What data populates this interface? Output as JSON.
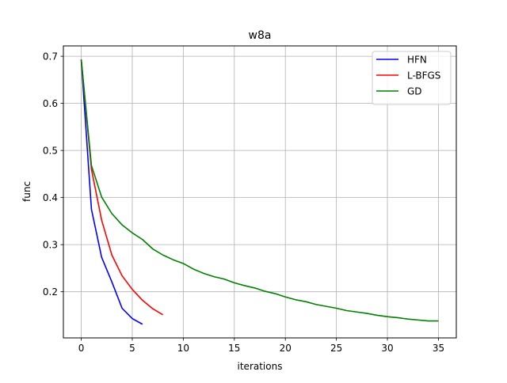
{
  "chart_data": {
    "type": "line",
    "title": "w8a",
    "xlabel": "iterations",
    "ylabel": "func",
    "xlim": [
      -1.75,
      36.75
    ],
    "ylim": [
      0.102,
      0.722
    ],
    "xticks": [
      0,
      5,
      10,
      15,
      20,
      25,
      30,
      35
    ],
    "yticks": [
      0.2,
      0.3,
      0.4,
      0.5,
      0.6,
      0.7
    ],
    "ytick_labels": [
      "0.2",
      "0.3",
      "0.4",
      "0.5",
      "0.6",
      "0.7"
    ],
    "grid": true,
    "legend_position": "top-right",
    "series": [
      {
        "name": "HFN",
        "color": "#0000ff",
        "x": [
          0,
          1,
          2,
          3,
          4,
          5,
          6
        ],
        "y": [
          0.693,
          0.375,
          0.273,
          0.221,
          0.165,
          0.143,
          0.131
        ]
      },
      {
        "name": "L-BFGS",
        "color": "#ff0000",
        "x": [
          0,
          1,
          2,
          3,
          4,
          5,
          6,
          7,
          8
        ],
        "y": [
          0.693,
          0.46,
          0.352,
          0.278,
          0.234,
          0.205,
          0.182,
          0.164,
          0.151
        ]
      },
      {
        "name": "GD",
        "color": "#008000",
        "x": [
          0,
          1,
          2,
          3,
          4,
          5,
          6,
          7,
          8,
          9,
          10,
          11,
          12,
          13,
          14,
          15,
          16,
          17,
          18,
          19,
          20,
          21,
          22,
          23,
          24,
          25,
          26,
          27,
          28,
          29,
          30,
          31,
          32,
          33,
          34,
          35
        ],
        "y": [
          0.693,
          0.468,
          0.401,
          0.366,
          0.342,
          0.325,
          0.311,
          0.291,
          0.278,
          0.268,
          0.26,
          0.248,
          0.239,
          0.232,
          0.227,
          0.219,
          0.213,
          0.208,
          0.201,
          0.196,
          0.189,
          0.183,
          0.179,
          0.173,
          0.169,
          0.165,
          0.16,
          0.157,
          0.154,
          0.15,
          0.147,
          0.145,
          0.142,
          0.14,
          0.138,
          0.138
        ]
      }
    ]
  }
}
